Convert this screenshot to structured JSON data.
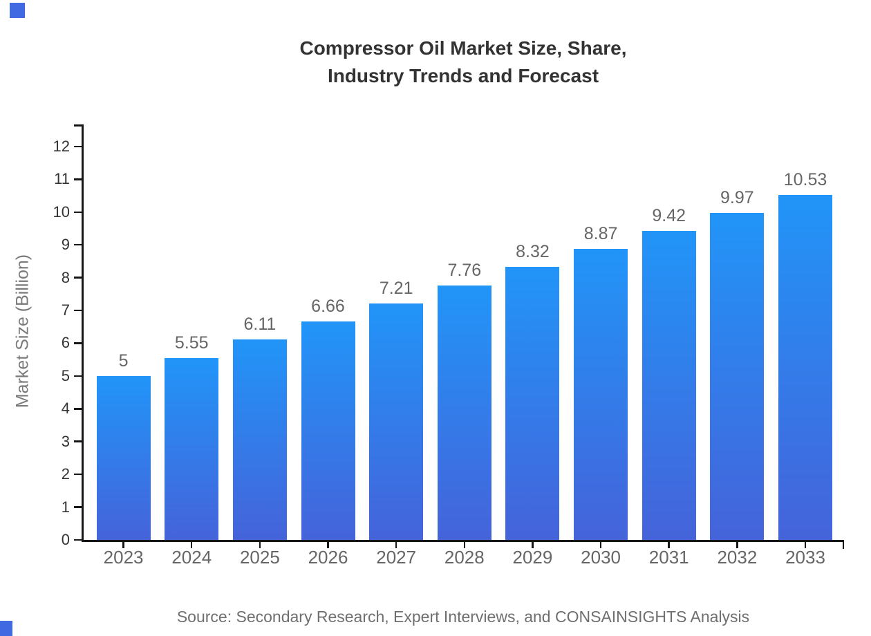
{
  "title": {
    "line1": "Compressor Oil Market Size, Share,",
    "line2": "Industry Trends and Forecast"
  },
  "source": "Source: Secondary Research, Expert Interviews, and CONSAINSIGHTS Analysis",
  "chart_data": {
    "type": "bar",
    "title": "Compressor Oil Market Size, Share, Industry Trends and Forecast",
    "categories": [
      "2023",
      "2024",
      "2025",
      "2026",
      "2027",
      "2028",
      "2029",
      "2030",
      "2031",
      "2032",
      "2033"
    ],
    "values": [
      5,
      5.55,
      6.11,
      6.66,
      7.21,
      7.76,
      8.32,
      8.87,
      9.42,
      9.97,
      10.53
    ],
    "value_labels": [
      "5",
      "5.55",
      "6.11",
      "6.66",
      "7.21",
      "7.76",
      "8.32",
      "8.87",
      "9.42",
      "9.97",
      "10.53"
    ],
    "xlabel": "",
    "ylabel": "Market Size (Billion)",
    "ylim": [
      0,
      12
    ],
    "ytick_step": 1,
    "ytick_labels": [
      "0",
      "1",
      "2",
      "3",
      "4",
      "5",
      "6",
      "7",
      "8",
      "9",
      "10",
      "11",
      "12"
    ],
    "grid": false,
    "legend": "none",
    "colors": {
      "bar_gradient_top": "#2195f8",
      "bar_gradient_bottom": "#4563da",
      "axis": "#161616",
      "value_label": "#666666",
      "x_tick_label": "#666666",
      "y_tick_label": "#333333",
      "brand_square": "#4169e1"
    }
  }
}
